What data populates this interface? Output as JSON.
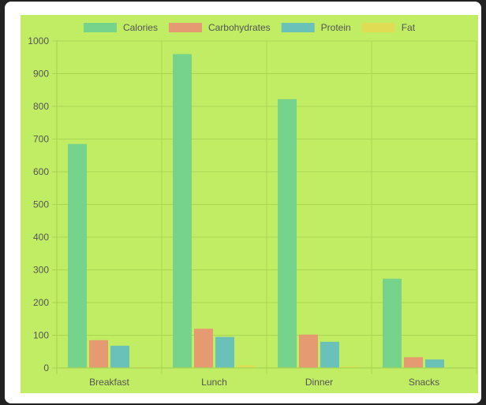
{
  "colors": {
    "page_background": "#222222",
    "card_background": "#ffffff",
    "chart_background": "#c0ed64",
    "grid": "#a8d653",
    "text": "#555555"
  },
  "chart_data": {
    "type": "bar",
    "title": "",
    "xlabel": "",
    "ylabel": "",
    "categories": [
      "Breakfast",
      "Lunch",
      "Dinner",
      "Snacks"
    ],
    "ylim": [
      0,
      1000
    ],
    "yticks": [
      0,
      100,
      200,
      300,
      400,
      500,
      600,
      700,
      800,
      900,
      1000
    ],
    "grid": true,
    "legend_position": "top",
    "series": [
      {
        "name": "Calories",
        "values": [
          685,
          960,
          822,
          273
        ],
        "color": "#76d38b"
      },
      {
        "name": "Carbohydrates",
        "values": [
          85,
          120,
          102,
          33
        ],
        "color": "#e59a72"
      },
      {
        "name": "Protein",
        "values": [
          68,
          95,
          80,
          26
        ],
        "color": "#6ac1b8"
      },
      {
        "name": "Fat",
        "values": [
          3,
          8,
          4,
          1
        ],
        "color": "#e0dd55"
      }
    ]
  }
}
